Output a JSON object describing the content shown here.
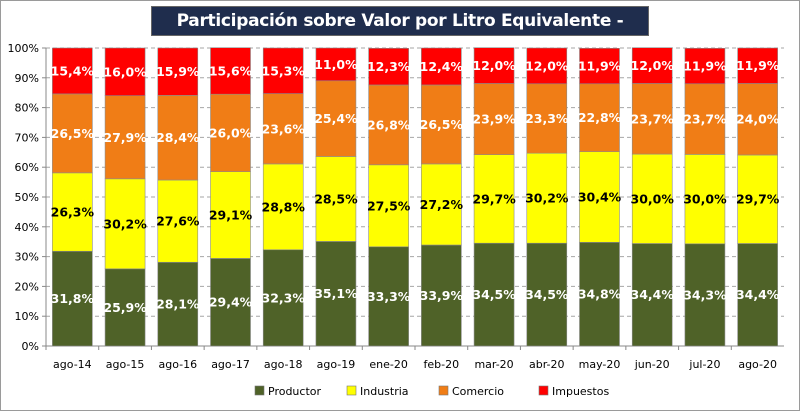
{
  "chart_data": {
    "type": "bar",
    "stacked": true,
    "title": "Participación sobre Valor por Litro Equivalente - Total Sistema",
    "categories": [
      "ago-14",
      "ago-15",
      "ago-16",
      "ago-17",
      "ago-18",
      "ago-19",
      "ene-20",
      "feb-20",
      "mar-20",
      "abr-20",
      "may-20",
      "jun-20",
      "jul-20",
      "ago-20"
    ],
    "series": [
      {
        "name": "Productor",
        "color": "#4f6228",
        "label_color": "#ffffff",
        "values": [
          31.8,
          25.9,
          28.1,
          29.4,
          32.3,
          35.1,
          33.3,
          33.9,
          34.5,
          34.5,
          34.8,
          34.4,
          34.3,
          34.4
        ]
      },
      {
        "name": "Industria",
        "color": "#ffff00",
        "label_color": "#000000",
        "values": [
          26.3,
          30.2,
          27.6,
          29.1,
          28.8,
          28.5,
          27.5,
          27.2,
          29.7,
          30.2,
          30.4,
          30.0,
          30.0,
          29.7
        ]
      },
      {
        "name": "Comercio",
        "color": "#f07d16",
        "label_color": "#ffffff",
        "values": [
          26.5,
          27.9,
          28.4,
          26.0,
          23.6,
          25.4,
          26.8,
          26.5,
          23.9,
          23.3,
          22.8,
          23.7,
          23.7,
          24.0
        ]
      },
      {
        "name": "Impuestos",
        "color": "#ff0000",
        "label_color": "#ffffff",
        "values": [
          15.4,
          16.0,
          15.9,
          15.6,
          15.3,
          11.0,
          12.3,
          12.4,
          12.0,
          12.0,
          11.9,
          12.0,
          11.9,
          11.9
        ]
      }
    ],
    "yticks": [
      "0%",
      "10%",
      "20%",
      "30%",
      "40%",
      "50%",
      "60%",
      "70%",
      "80%",
      "90%",
      "100%"
    ],
    "ylim": [
      0,
      100
    ],
    "grid": true,
    "legend": "bottom",
    "xlabel": "",
    "ylabel": ""
  }
}
